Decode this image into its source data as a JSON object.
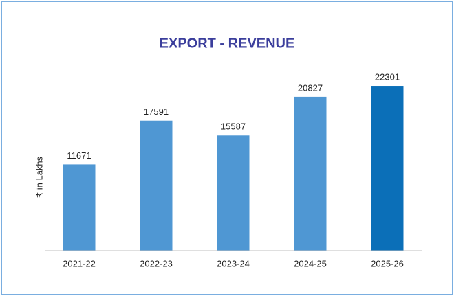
{
  "chart_data": {
    "type": "bar",
    "title": "EXPORT - REVENUE",
    "y_label": "₹ in Lakhs",
    "categories": [
      "2021-22",
      "2022-23",
      "2023-24",
      "2024-25",
      "2025-26"
    ],
    "values": [
      11671,
      17591,
      15587,
      20827,
      22301
    ],
    "colors": [
      "#4f97d3",
      "#4f97d3",
      "#4f97d3",
      "#4f97d3",
      "#0b6fb8"
    ],
    "ylim": [
      0,
      25000
    ]
  }
}
